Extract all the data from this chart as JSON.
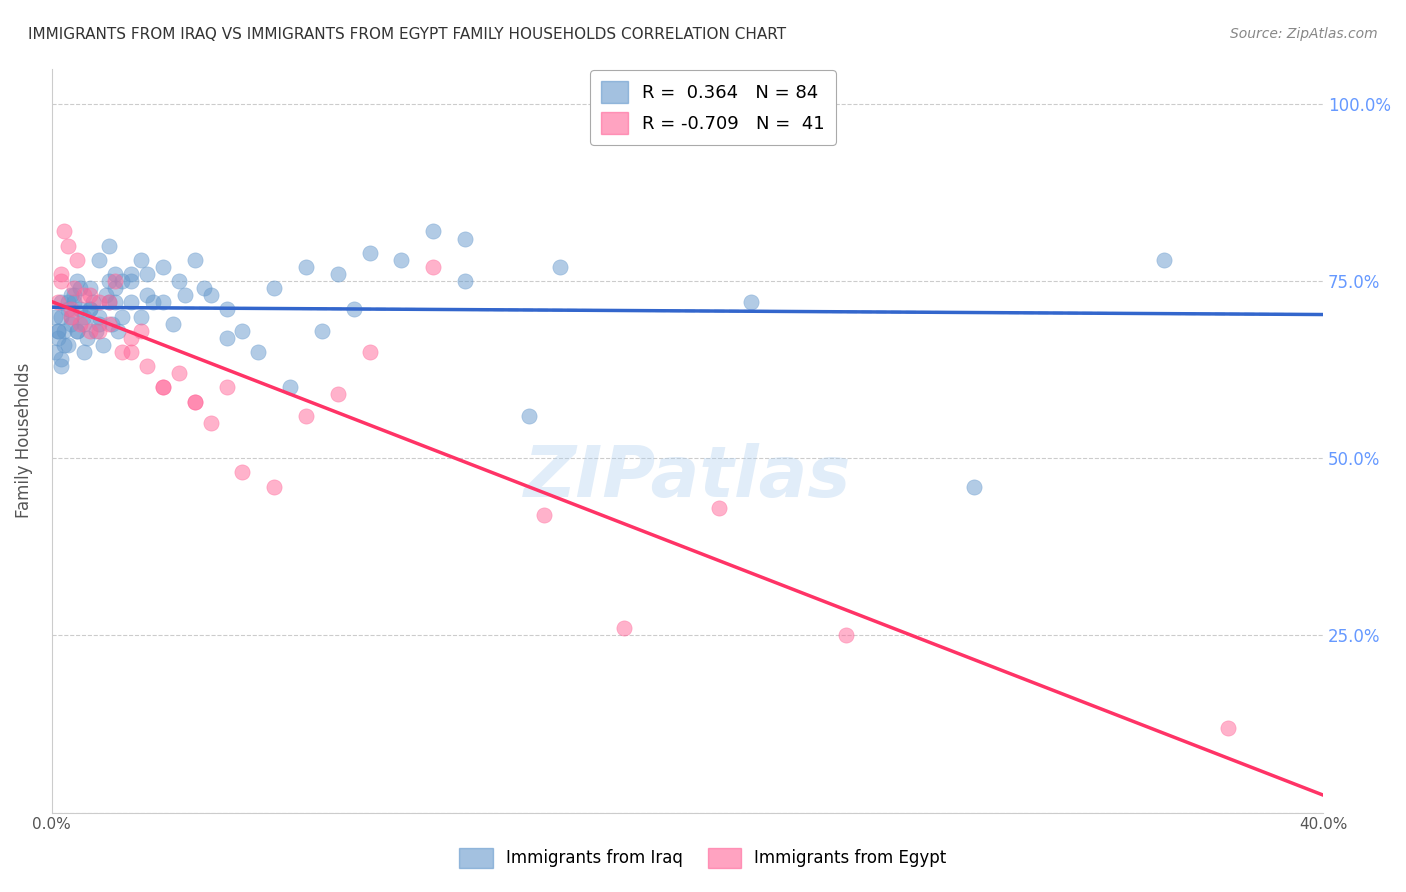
{
  "title": "IMMIGRANTS FROM IRAQ VS IMMIGRANTS FROM EGYPT FAMILY HOUSEHOLDS CORRELATION CHART",
  "source": "Source: ZipAtlas.com",
  "xlabel": "",
  "ylabel": "Family Households",
  "xlim": [
    0.0,
    0.4
  ],
  "ylim": [
    0.0,
    1.05
  ],
  "yticks": [
    0.0,
    0.25,
    0.5,
    0.75,
    1.0
  ],
  "ytick_labels": [
    "",
    "25.0%",
    "50.0%",
    "75.0%",
    "100.0%"
  ],
  "xticks": [
    0.0,
    0.05,
    0.1,
    0.15,
    0.2,
    0.25,
    0.3,
    0.35,
    0.4
  ],
  "xtick_labels": [
    "0.0%",
    "",
    "",
    "",
    "",
    "",
    "",
    "",
    "40.0%"
  ],
  "iraq_R": 0.364,
  "iraq_N": 84,
  "egypt_R": -0.709,
  "egypt_N": 41,
  "iraq_color": "#6699CC",
  "egypt_color": "#FF6699",
  "iraq_line_color": "#3366CC",
  "egypt_line_color": "#FF3366",
  "iraq_dashed_color": "#99BBEE",
  "background_color": "#FFFFFF",
  "grid_color": "#CCCCCC",
  "right_axis_color": "#6699FF",
  "iraq_scatter_x": [
    0.002,
    0.005,
    0.003,
    0.008,
    0.006,
    0.004,
    0.001,
    0.003,
    0.007,
    0.009,
    0.012,
    0.015,
    0.01,
    0.018,
    0.02,
    0.022,
    0.025,
    0.028,
    0.03,
    0.035,
    0.002,
    0.003,
    0.005,
    0.006,
    0.008,
    0.01,
    0.012,
    0.015,
    0.018,
    0.02,
    0.022,
    0.025,
    0.03,
    0.035,
    0.04,
    0.045,
    0.05,
    0.055,
    0.06,
    0.07,
    0.08,
    0.09,
    0.1,
    0.11,
    0.12,
    0.13,
    0.001,
    0.002,
    0.003,
    0.004,
    0.005,
    0.006,
    0.007,
    0.008,
    0.009,
    0.01,
    0.011,
    0.012,
    0.013,
    0.014,
    0.015,
    0.016,
    0.017,
    0.018,
    0.019,
    0.02,
    0.021,
    0.025,
    0.028,
    0.032,
    0.038,
    0.042,
    0.048,
    0.055,
    0.065,
    0.075,
    0.085,
    0.095,
    0.15,
    0.22,
    0.29,
    0.35,
    0.13,
    0.16
  ],
  "iraq_scatter_y": [
    0.68,
    0.72,
    0.7,
    0.75,
    0.73,
    0.68,
    0.65,
    0.64,
    0.72,
    0.71,
    0.74,
    0.78,
    0.69,
    0.8,
    0.76,
    0.75,
    0.72,
    0.78,
    0.76,
    0.77,
    0.67,
    0.63,
    0.66,
    0.7,
    0.68,
    0.65,
    0.71,
    0.69,
    0.72,
    0.74,
    0.7,
    0.76,
    0.73,
    0.72,
    0.75,
    0.78,
    0.73,
    0.71,
    0.68,
    0.74,
    0.77,
    0.76,
    0.79,
    0.78,
    0.82,
    0.81,
    0.7,
    0.68,
    0.72,
    0.66,
    0.71,
    0.69,
    0.73,
    0.68,
    0.74,
    0.7,
    0.67,
    0.71,
    0.72,
    0.68,
    0.7,
    0.66,
    0.73,
    0.75,
    0.69,
    0.72,
    0.68,
    0.75,
    0.7,
    0.72,
    0.69,
    0.73,
    0.74,
    0.67,
    0.65,
    0.6,
    0.68,
    0.71,
    0.56,
    0.72,
    0.46,
    0.78,
    0.75,
    0.77
  ],
  "egypt_scatter_x": [
    0.002,
    0.005,
    0.003,
    0.008,
    0.007,
    0.004,
    0.006,
    0.01,
    0.012,
    0.015,
    0.018,
    0.02,
    0.022,
    0.025,
    0.028,
    0.03,
    0.035,
    0.04,
    0.045,
    0.05,
    0.055,
    0.06,
    0.07,
    0.08,
    0.09,
    0.1,
    0.003,
    0.006,
    0.009,
    0.012,
    0.015,
    0.018,
    0.025,
    0.035,
    0.045,
    0.155,
    0.18,
    0.21,
    0.25,
    0.37,
    0.12
  ],
  "egypt_scatter_y": [
    0.72,
    0.8,
    0.76,
    0.78,
    0.74,
    0.82,
    0.7,
    0.73,
    0.68,
    0.72,
    0.69,
    0.75,
    0.65,
    0.67,
    0.68,
    0.63,
    0.6,
    0.62,
    0.58,
    0.55,
    0.6,
    0.48,
    0.46,
    0.56,
    0.59,
    0.65,
    0.75,
    0.71,
    0.69,
    0.73,
    0.68,
    0.72,
    0.65,
    0.6,
    0.58,
    0.42,
    0.26,
    0.43,
    0.25,
    0.12,
    0.77
  ],
  "watermark": "ZIPatlas",
  "legend_iraq_label": "Immigrants from Iraq",
  "legend_egypt_label": "Immigrants from Egypt"
}
